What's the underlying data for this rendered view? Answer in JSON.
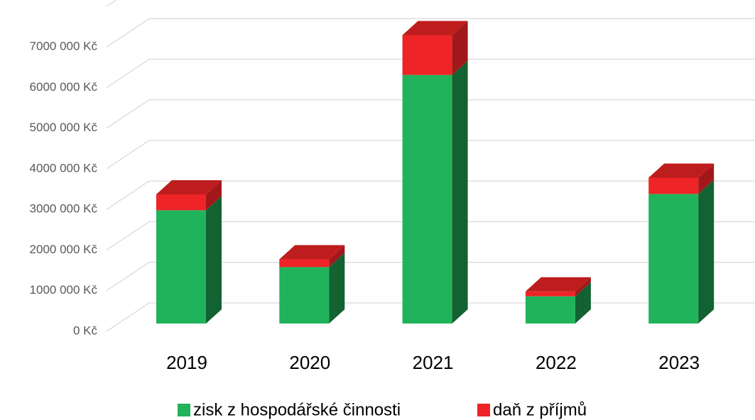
{
  "chart_data": {
    "type": "bar3d_stacked",
    "categories": [
      "2019",
      "2020",
      "2021",
      "2022",
      "2023"
    ],
    "series": [
      {
        "name": "zisk z hospodářské činnosti",
        "color": "#21b35b",
        "values": [
          2790000,
          1390000,
          6120000,
          670000,
          3190000
        ]
      },
      {
        "name": "daň z příjmů",
        "color": "#ee2426",
        "values": [
          390000,
          190000,
          980000,
          120000,
          400000
        ]
      }
    ],
    "ylim": [
      0,
      8000000
    ],
    "yticks": [
      {
        "value": 0,
        "label": "0 Kč"
      },
      {
        "value": 1000000,
        "label": "1000 000 Kč"
      },
      {
        "value": 2000000,
        "label": "2000 000 Kč"
      },
      {
        "value": 3000000,
        "label": "3000 000 Kč"
      },
      {
        "value": 4000000,
        "label": "4000 000 Kč"
      },
      {
        "value": 5000000,
        "label": "5000 000 Kč"
      },
      {
        "value": 6000000,
        "label": "6000 000 Kč"
      },
      {
        "value": 7000000,
        "label": "7000 000 Kč"
      }
    ],
    "grid": true,
    "legend": "bottom"
  }
}
